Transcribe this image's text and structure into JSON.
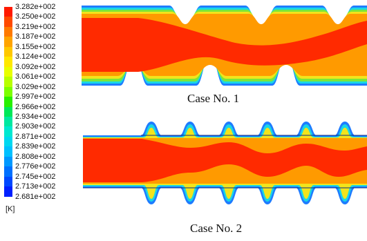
{
  "chart_data": {
    "type": "heatmap",
    "quantity_unit": "[K]",
    "colorbar": {
      "ticks": [
        "3.282e+002",
        "3.250e+002",
        "3.219e+002",
        "3.187e+002",
        "3.155e+002",
        "3.124e+002",
        "3.092e+002",
        "3.061e+002",
        "3.029e+002",
        "2.997e+002",
        "2.966e+002",
        "2.934e+002",
        "2.903e+002",
        "2.871e+002",
        "2.839e+002",
        "2.808e+002",
        "2.776e+002",
        "2.745e+002",
        "2.713e+002",
        "2.681e+002"
      ],
      "colors": [
        "#ff1a00",
        "#ff4a00",
        "#ff7a00",
        "#ffa400",
        "#ffc800",
        "#ffe800",
        "#e8ff00",
        "#b8ff00",
        "#7cff00",
        "#28f000",
        "#00e858",
        "#00e8a0",
        "#00e8d0",
        "#00d8f0",
        "#00c0ff",
        "#0098ff",
        "#0070ff",
        "#0048ff",
        "#0020ff"
      ],
      "min": 268.1,
      "max": 328.2
    },
    "panels": [
      {
        "caption": "Case No. 1"
      },
      {
        "caption": "Case No. 2"
      }
    ]
  }
}
